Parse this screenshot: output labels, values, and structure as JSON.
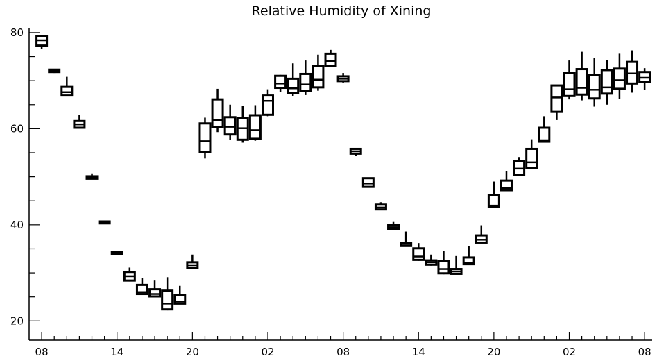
{
  "chart_data": {
    "type": "box",
    "title": "Relative Humidity of Xining",
    "xlabel": "",
    "ylabel": "",
    "ylim": [
      16,
      81
    ],
    "xlim": [
      0,
      49.6
    ],
    "y_ticks": [
      20,
      40,
      60,
      80
    ],
    "x_tick_labels": [
      {
        "x": 1,
        "label": "08"
      },
      {
        "x": 7,
        "label": "14"
      },
      {
        "x": 13,
        "label": "20"
      },
      {
        "x": 19,
        "label": "02"
      },
      {
        "x": 25,
        "label": "08"
      },
      {
        "x": 31,
        "label": "14"
      },
      {
        "x": 37,
        "label": "20"
      },
      {
        "x": 43,
        "label": "02"
      },
      {
        "x": 49,
        "label": "08"
      }
    ],
    "grid": false,
    "boxes": [
      {
        "x": 1,
        "min": 76.6,
        "q1": 77.3,
        "median": 78.4,
        "q3": 79.2,
        "max": 79.2
      },
      {
        "x": 2,
        "min": 71.6,
        "q1": 71.8,
        "median": 72.0,
        "q3": 72.3,
        "max": 72.4
      },
      {
        "x": 3,
        "min": 66.8,
        "q1": 66.9,
        "median": 67.6,
        "q3": 68.7,
        "max": 70.8
      },
      {
        "x": 4,
        "min": 60.0,
        "q1": 60.2,
        "median": 60.9,
        "q3": 61.6,
        "max": 62.9
      },
      {
        "x": 5,
        "min": 49.5,
        "q1": 49.6,
        "median": 49.9,
        "q3": 50.1,
        "max": 50.7
      },
      {
        "x": 6,
        "min": 40.2,
        "q1": 40.3,
        "median": 40.4,
        "q3": 40.7,
        "max": 40.8
      },
      {
        "x": 7,
        "min": 33.8,
        "q1": 33.9,
        "median": 34.1,
        "q3": 34.3,
        "max": 34.6
      },
      {
        "x": 8,
        "min": 28.2,
        "q1": 28.4,
        "median": 29.3,
        "q3": 30.2,
        "max": 31.1
      },
      {
        "x": 9,
        "min": 25.5,
        "q1": 25.6,
        "median": 26.0,
        "q3": 27.5,
        "max": 29.0
      },
      {
        "x": 10,
        "min": 25.0,
        "q1": 25.1,
        "median": 25.6,
        "q3": 26.6,
        "max": 28.4
      },
      {
        "x": 11,
        "min": 22.2,
        "q1": 22.4,
        "median": 23.6,
        "q3": 26.3,
        "max": 29.1
      },
      {
        "x": 12,
        "min": 23.5,
        "q1": 23.6,
        "median": 24.0,
        "q3": 25.4,
        "max": 27.3
      },
      {
        "x": 13,
        "min": 30.9,
        "q1": 31.0,
        "median": 31.6,
        "q3": 32.2,
        "max": 33.8
      },
      {
        "x": 14,
        "min": 53.8,
        "q1": 55.1,
        "median": 57.4,
        "q3": 61.1,
        "max": 62.3
      },
      {
        "x": 15,
        "min": 59.3,
        "q1": 60.3,
        "median": 61.8,
        "q3": 66.1,
        "max": 68.3
      },
      {
        "x": 16,
        "min": 57.6,
        "q1": 58.8,
        "median": 60.4,
        "q3": 62.4,
        "max": 65.0
      },
      {
        "x": 17,
        "min": 57.1,
        "q1": 57.7,
        "median": 60.1,
        "q3": 62.2,
        "max": 64.8
      },
      {
        "x": 18,
        "min": 57.5,
        "q1": 57.9,
        "median": 59.7,
        "q3": 62.8,
        "max": 64.9
      },
      {
        "x": 19,
        "min": 62.6,
        "q1": 62.9,
        "median": 65.8,
        "q3": 66.9,
        "max": 68.2
      },
      {
        "x": 20,
        "min": 67.6,
        "q1": 68.5,
        "median": 69.4,
        "q3": 71.0,
        "max": 71.2
      },
      {
        "x": 21,
        "min": 66.7,
        "q1": 67.4,
        "median": 68.4,
        "q3": 70.4,
        "max": 73.6
      },
      {
        "x": 22,
        "min": 67.0,
        "q1": 67.9,
        "median": 69.2,
        "q3": 71.4,
        "max": 74.2
      },
      {
        "x": 23,
        "min": 67.9,
        "q1": 68.6,
        "median": 70.2,
        "q3": 73.0,
        "max": 75.4
      },
      {
        "x": 24,
        "min": 73.0,
        "q1": 73.1,
        "median": 74.1,
        "q3": 75.6,
        "max": 76.4
      },
      {
        "x": 25,
        "min": 69.6,
        "q1": 69.9,
        "median": 70.4,
        "q3": 70.9,
        "max": 71.6
      },
      {
        "x": 26,
        "min": 54.4,
        "q1": 54.8,
        "median": 55.3,
        "q3": 55.8,
        "max": 55.9
      },
      {
        "x": 27,
        "min": 47.8,
        "q1": 47.9,
        "median": 48.6,
        "q3": 49.7,
        "max": 49.8
      },
      {
        "x": 28,
        "min": 43.1,
        "q1": 43.2,
        "median": 43.6,
        "q3": 44.2,
        "max": 44.7
      },
      {
        "x": 29,
        "min": 38.9,
        "q1": 39.1,
        "median": 39.5,
        "q3": 40.0,
        "max": 40.6
      },
      {
        "x": 30,
        "min": 35.5,
        "q1": 35.6,
        "median": 36.0,
        "q3": 36.2,
        "max": 38.6
      },
      {
        "x": 31,
        "min": 32.5,
        "q1": 32.7,
        "median": 33.4,
        "q3": 35.1,
        "max": 36.2
      },
      {
        "x": 32,
        "min": 31.5,
        "q1": 31.7,
        "median": 32.2,
        "q3": 32.6,
        "max": 33.8
      },
      {
        "x": 33,
        "min": 29.7,
        "q1": 29.9,
        "median": 30.8,
        "q3": 32.5,
        "max": 34.5
      },
      {
        "x": 34,
        "min": 29.7,
        "q1": 29.8,
        "median": 30.3,
        "q3": 30.8,
        "max": 33.5
      },
      {
        "x": 35,
        "min": 31.7,
        "q1": 31.8,
        "median": 32.1,
        "q3": 33.2,
        "max": 35.5
      },
      {
        "x": 36,
        "min": 36.2,
        "q1": 36.3,
        "median": 36.9,
        "q3": 37.8,
        "max": 39.9
      },
      {
        "x": 37,
        "min": 43.6,
        "q1": 43.7,
        "median": 44.0,
        "q3": 46.2,
        "max": 49.0
      },
      {
        "x": 38,
        "min": 47.0,
        "q1": 47.2,
        "median": 47.6,
        "q3": 49.2,
        "max": 51.1
      },
      {
        "x": 39,
        "min": 50.2,
        "q1": 50.4,
        "median": 51.7,
        "q3": 53.3,
        "max": 54.1
      },
      {
        "x": 40,
        "min": 51.6,
        "q1": 51.8,
        "median": 53.0,
        "q3": 55.8,
        "max": 57.8
      },
      {
        "x": 41,
        "min": 57.1,
        "q1": 57.3,
        "median": 57.6,
        "q3": 60.2,
        "max": 62.6
      },
      {
        "x": 42,
        "min": 61.8,
        "q1": 63.5,
        "median": 66.5,
        "q3": 69.0,
        "max": 69.0
      },
      {
        "x": 43,
        "min": 66.1,
        "q1": 66.8,
        "median": 68.2,
        "q3": 71.6,
        "max": 74.2
      },
      {
        "x": 44,
        "min": 65.9,
        "q1": 67.1,
        "median": 68.5,
        "q3": 72.4,
        "max": 76.0
      },
      {
        "x": 45,
        "min": 64.6,
        "q1": 66.3,
        "median": 68.1,
        "q3": 71.2,
        "max": 74.7
      },
      {
        "x": 46,
        "min": 65.0,
        "q1": 67.3,
        "median": 68.6,
        "q3": 72.2,
        "max": 74.3
      },
      {
        "x": 47,
        "min": 66.2,
        "q1": 68.3,
        "median": 70.1,
        "q3": 72.5,
        "max": 75.6
      },
      {
        "x": 48,
        "min": 67.5,
        "q1": 69.4,
        "median": 71.5,
        "q3": 73.9,
        "max": 76.3
      },
      {
        "x": 49,
        "min": 68.0,
        "q1": 69.8,
        "median": 70.6,
        "q3": 71.8,
        "max": 72.6
      }
    ]
  }
}
